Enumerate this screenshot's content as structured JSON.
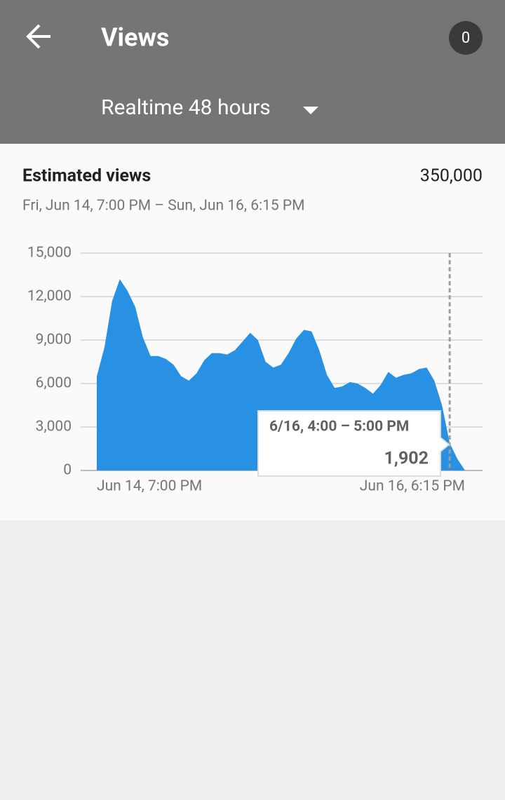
{
  "app_bar": {
    "title": "Views",
    "badge": "0",
    "period": "Realtime 48 hours"
  },
  "card": {
    "title": "Estimated views",
    "total": "350,000",
    "range": "Fri, Jun 14, 7:00 PM – Sun, Jun 16, 6:15 PM"
  },
  "chart_data": {
    "type": "area",
    "color": "#2891e3",
    "categories": [
      "Jun 14, 7:00 PM",
      null,
      null,
      null,
      null,
      null,
      null,
      null,
      null,
      null,
      null,
      null,
      null,
      null,
      null,
      null,
      null,
      null,
      null,
      null,
      null,
      null,
      null,
      null,
      null,
      null,
      null,
      null,
      null,
      null,
      null,
      null,
      null,
      null,
      null,
      null,
      null,
      null,
      null,
      null,
      null,
      null,
      null,
      null,
      null,
      null,
      null,
      null,
      "Jun 16, 6:15 PM"
    ],
    "values": [
      6500,
      8500,
      11700,
      13200,
      12400,
      11300,
      9200,
      7900,
      7900,
      7700,
      7300,
      6500,
      6200,
      6700,
      7600,
      8100,
      8100,
      8000,
      8300,
      8900,
      9500,
      9000,
      7500,
      7100,
      7300,
      8100,
      9100,
      9700,
      9600,
      8300,
      6600,
      5700,
      5800,
      6100,
      6000,
      5700,
      5300,
      5900,
      6800,
      6400,
      6600,
      6700,
      7000,
      7100,
      6200,
      4500,
      1902,
      800,
      0
    ],
    "value_labels": {
      "46": "1,902"
    },
    "tooltip": {
      "index": 46,
      "label": "6/16, 4:00 – 5:00 PM"
    },
    "ylim": [
      0,
      15000
    ],
    "yticks": [
      0,
      {
        "value": 3000,
        "label": "3,000"
      },
      {
        "value": 6000,
        "label": "6,000"
      },
      {
        "value": 9000,
        "label": "9,000"
      },
      {
        "value": 12000,
        "label": "12,000"
      },
      {
        "value": 15000,
        "label": "15,000"
      }
    ],
    "grid": true
  }
}
